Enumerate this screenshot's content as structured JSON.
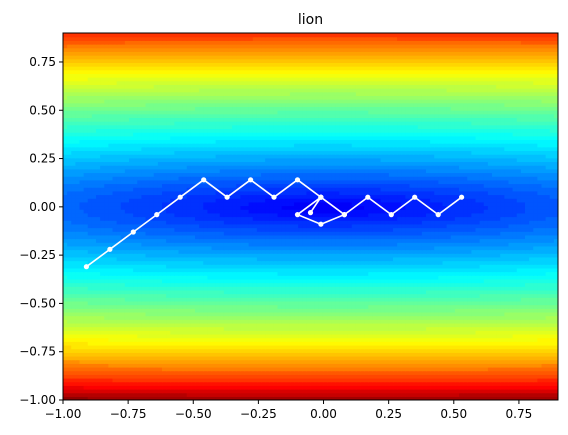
{
  "chart_data": {
    "type": "line",
    "title": "lion",
    "xlabel": "",
    "ylabel": "",
    "xlim": [
      -1.0,
      0.9
    ],
    "ylim": [
      -1.0,
      0.9
    ],
    "xticks": [
      -1.0,
      -0.75,
      -0.5,
      -0.25,
      0.0,
      0.25,
      0.5,
      0.75
    ],
    "xtick_labels": [
      "−1.00",
      "−0.75",
      "−0.50",
      "−0.25",
      "0.00",
      "0.25",
      "0.50",
      "0.75"
    ],
    "yticks": [
      -1.0,
      -0.75,
      -0.5,
      -0.25,
      0.0,
      0.25,
      0.5,
      0.75
    ],
    "ytick_labels": [
      "−1.00",
      "−0.75",
      "−0.50",
      "−0.25",
      "0.00",
      "0.25",
      "0.50",
      "0.75"
    ],
    "background": "filled contour of an elongated bowl-shaped function (jet colormap), minimum near (0, 0)",
    "series": [
      {
        "color": "#ffffff",
        "x": [
          -0.91,
          -0.82,
          -0.73,
          -0.64,
          -0.55,
          -0.46,
          -0.37,
          -0.28,
          -0.19,
          -0.1,
          -0.01,
          -0.1,
          -0.01,
          0.08,
          -0.01,
          -0.05,
          -0.01,
          0.08,
          0.17,
          0.26,
          0.35,
          0.44,
          0.53
        ],
        "y": [
          -0.31,
          -0.22,
          -0.13,
          -0.04,
          0.05,
          0.14,
          0.05,
          0.14,
          0.05,
          0.14,
          0.05,
          -0.04,
          -0.09,
          -0.04,
          0.05,
          -0.03,
          0.05,
          -0.04,
          0.05,
          -0.04,
          0.05,
          -0.04,
          0.05
        ]
      }
    ]
  }
}
